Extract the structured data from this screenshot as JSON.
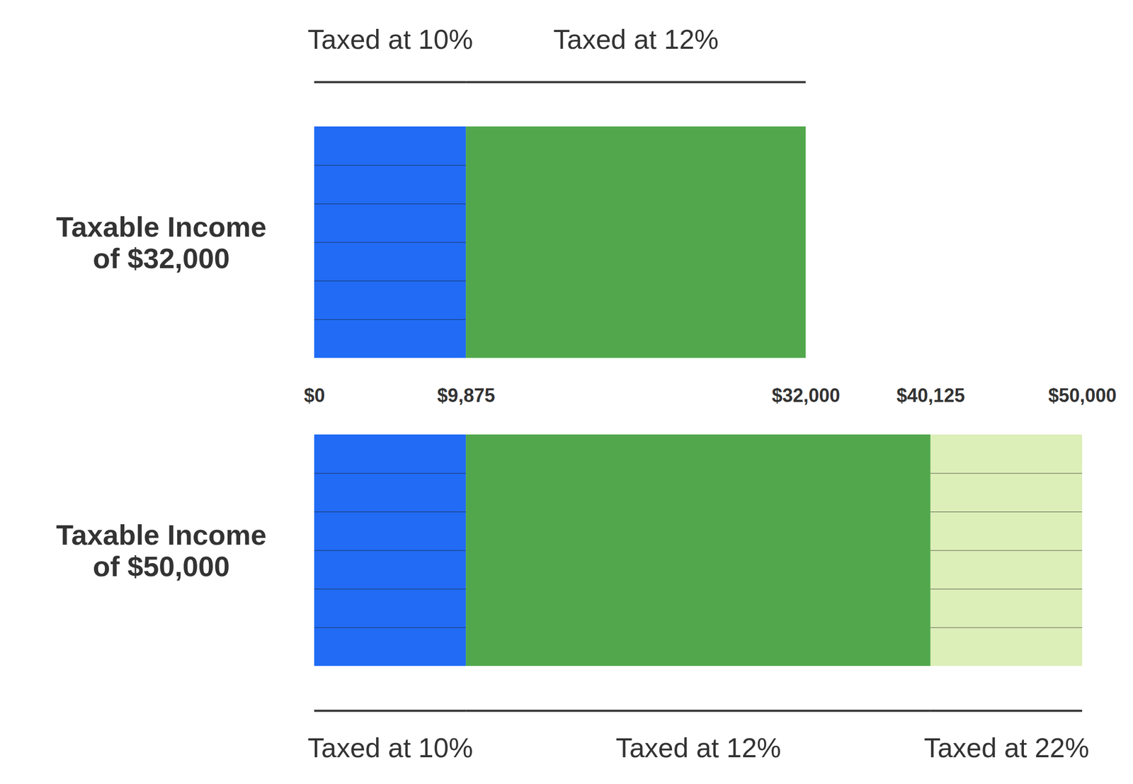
{
  "chart_data": {
    "type": "bar",
    "orientation": "horizontal",
    "stacked": true,
    "grid": false,
    "categories": [
      "Taxable Income of $32,000",
      "Taxable Income of $50,000"
    ],
    "series": [
      {
        "name": "Taxed at 10%",
        "color": "#216bf5",
        "values": [
          9875,
          9875
        ]
      },
      {
        "name": "Taxed at 12%",
        "color": "#52a74c",
        "values": [
          22125,
          30250
        ]
      },
      {
        "name": "Taxed at 22%",
        "color": "#ddefb9",
        "values": [
          null,
          9875
        ]
      }
    ],
    "xlim": [
      0,
      50000
    ],
    "xticks": [
      {
        "value": 0,
        "label": "$0"
      },
      {
        "value": 9875,
        "label": "$9,875"
      },
      {
        "value": 32000,
        "label": "$32,000"
      },
      {
        "value": 40125,
        "label": "$40,125"
      },
      {
        "value": 50000,
        "label": "$50,000"
      }
    ]
  }
}
